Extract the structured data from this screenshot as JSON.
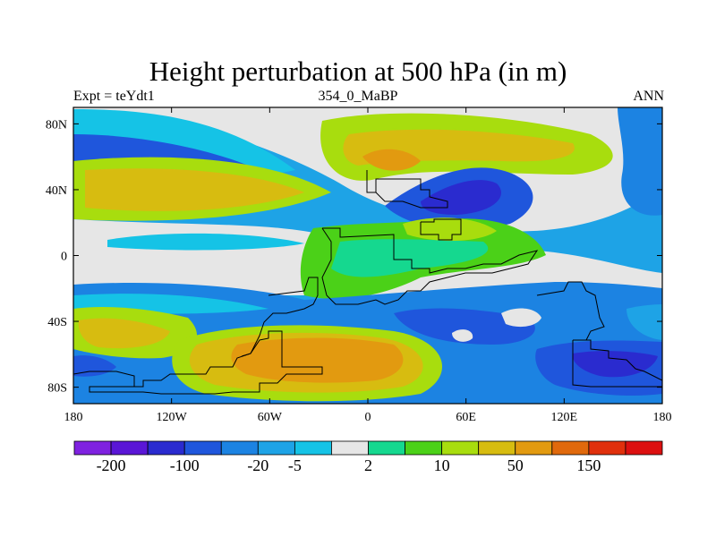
{
  "figure": {
    "title": "Height perturbation at 500 hPa (in m)",
    "left_label": "Expt = teYdt1",
    "center_label": "354_0_MaBP",
    "right_label": "ANN"
  },
  "axes": {
    "lon_ticks": [
      "180",
      "120W",
      "60W",
      "0",
      "60E",
      "120E",
      "180"
    ],
    "lat_ticks": [
      "80N",
      "40N",
      "0",
      "40S",
      "80S"
    ]
  },
  "colorbar": {
    "colors": [
      "#7f22e0",
      "#5a16d6",
      "#2a2bcf",
      "#1f56dc",
      "#1c83e2",
      "#1ea3e6",
      "#15c3e6",
      "#e6e6e6",
      "#15d88f",
      "#4bd118",
      "#a8dd0e",
      "#d7bc10",
      "#e29a10",
      "#e0690c",
      "#e0300c",
      "#dc1010"
    ],
    "labels": [
      {
        "after_box": 1,
        "text": "-200"
      },
      {
        "after_box": 3,
        "text": "-100"
      },
      {
        "after_box": 5,
        "text": "-20"
      },
      {
        "after_box": 6,
        "text": "-5"
      },
      {
        "after_box": 8,
        "text": "2"
      },
      {
        "after_box": 10,
        "text": "10"
      },
      {
        "after_box": 12,
        "text": "50"
      },
      {
        "after_box": 14,
        "text": "150"
      }
    ]
  }
}
